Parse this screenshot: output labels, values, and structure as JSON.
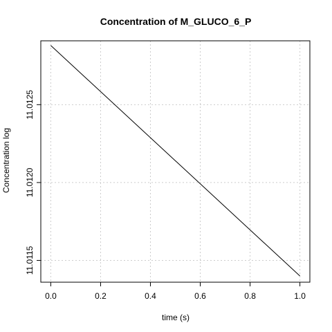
{
  "chart_data": {
    "type": "line",
    "title": "Concentration of M_GLUCO_6_P",
    "xlabel": "time (s)",
    "ylabel": "Concentration log",
    "xlim": [
      -0.04,
      1.04
    ],
    "ylim": [
      11.01136,
      11.01291
    ],
    "grid": true,
    "x_ticks": [
      0,
      0.2,
      0.4,
      0.6,
      0.8,
      1
    ],
    "x_tick_labels": [
      "0.0",
      "0.2",
      "0.4",
      "0.6",
      "0.8",
      "1.0"
    ],
    "y_ticks": [
      11.0115,
      11.012,
      11.0125
    ],
    "y_tick_labels": [
      "11.0115",
      "11.0120",
      "11.0125"
    ],
    "series": [
      {
        "x": [
          0,
          1
        ],
        "y": [
          11.01288,
          11.0114
        ]
      }
    ]
  }
}
